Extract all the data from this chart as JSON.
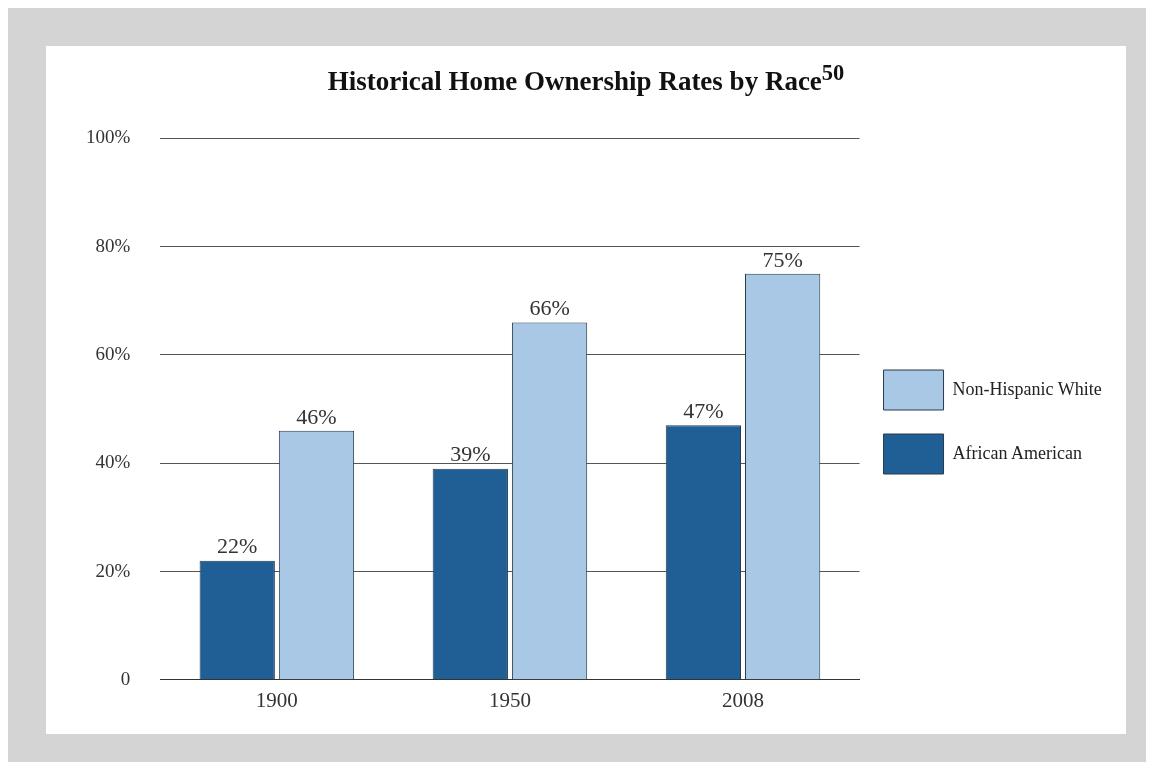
{
  "chart_data": {
    "type": "bar",
    "title": "Historical Home Ownership Rates by Race$^{50}$",
    "categories": [
      "1900",
      "1950",
      "2008"
    ],
    "series": [
      {
        "name": "African American",
        "color": "#1f5f96",
        "values": [
          22,
          39,
          47
        ],
        "value_labels": [
          "22%",
          "39%",
          "47%"
        ]
      },
      {
        "name": "Non-Hispanic White",
        "color": "#a9c8e6",
        "values": [
          46,
          66,
          75
        ],
        "value_labels": [
          "46%",
          "66%",
          "75%"
        ]
      }
    ],
    "ylim": [
      0,
      100
    ],
    "yticks": [
      0,
      {
        "value": 20,
        "label": "20%"
      },
      {
        "value": 40,
        "label": "40%"
      },
      {
        "value": 60,
        "label": "60%"
      },
      {
        "value": 80,
        "label": "80%"
      },
      {
        "value": 100,
        "label": "100%"
      }
    ],
    "grid": "y",
    "legend": "right"
  }
}
